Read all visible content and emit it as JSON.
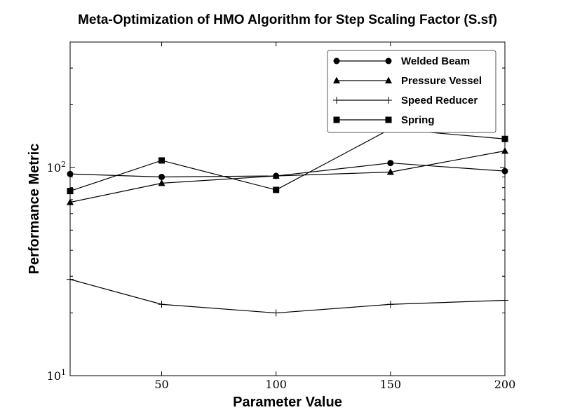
{
  "chart_data": {
    "type": "line",
    "title": "Meta-Optimization of HMO Algorithm for Step Scaling Factor (S.sf)",
    "xlabel": "Parameter Value",
    "ylabel": "Performance Metric",
    "x": [
      10,
      50,
      100,
      150,
      200
    ],
    "xlim": [
      10,
      200
    ],
    "xticks": [
      50,
      100,
      150,
      200
    ],
    "yscale": "log",
    "ylim": [
      10,
      400
    ],
    "yticks": [
      {
        "value": 10,
        "base": "10",
        "exp": "1"
      },
      {
        "value": 100,
        "base": "10",
        "exp": "2"
      }
    ],
    "legend_position": "top-right",
    "grid": false,
    "series": [
      {
        "name": "Welded Beam",
        "marker": "circle",
        "values": [
          93,
          90,
          91,
          105,
          96
        ]
      },
      {
        "name": "Pressure Vessel",
        "marker": "triangle",
        "values": [
          68,
          84,
          91,
          95,
          120
        ]
      },
      {
        "name": "Speed Reducer",
        "marker": "plus",
        "values": [
          29,
          22,
          20,
          22,
          23
        ]
      },
      {
        "name": "Spring",
        "marker": "square",
        "values": [
          77,
          108,
          78,
          153,
          137
        ]
      }
    ]
  }
}
